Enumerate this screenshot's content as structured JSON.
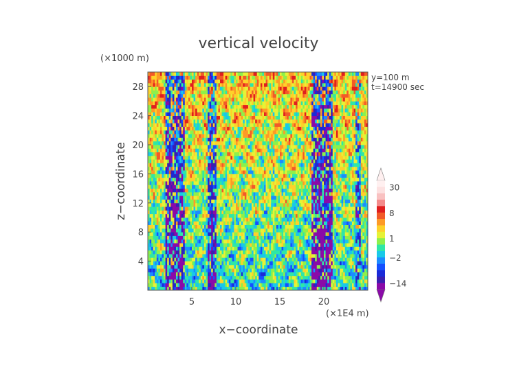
{
  "chart_data": {
    "type": "heatmap",
    "title": "vertical velocity",
    "xlabel": "x−coordinate",
    "ylabel": "z−coordinate",
    "x_unit": "(×1E4 m)",
    "y_unit": "(×1000 m)",
    "xlim": [
      0,
      25
    ],
    "ylim": [
      0,
      30
    ],
    "x_ticks": [
      5,
      10,
      15,
      20
    ],
    "y_ticks": [
      4,
      8,
      12,
      16,
      20,
      24,
      28
    ],
    "annotations": [
      "y=100  m",
      "t=14900 sec"
    ],
    "colorbar": {
      "labels": [
        "30",
        "8",
        "1",
        "−2",
        "−14"
      ],
      "label_values": [
        30,
        8,
        1,
        -2,
        -14
      ],
      "levels": [
        -14,
        -10,
        -6,
        -4,
        -2,
        -1,
        0,
        1,
        2,
        4,
        6,
        8,
        12,
        16,
        22,
        30
      ],
      "colors": [
        "#8a0aa8",
        "#3a1fb0",
        "#1a2ad8",
        "#1450ff",
        "#1c8cff",
        "#19c9e8",
        "#2fe7a6",
        "#8ef04a",
        "#e6f236",
        "#fed12a",
        "#fd9a27",
        "#f25a28",
        "#e01e1e",
        "#f48b8b",
        "#f9c1c1",
        "#fde1e1",
        "#fff0f0"
      ],
      "extend": "both"
    },
    "field_shape": [
      60,
      125
    ],
    "field_note": "dense turbulent vertical velocity field; dominant tones: orange/red upper region, cyan/green/yellow middle, yellow-green lower region, blue updraft/downdraft columns near x=2-4, 7, 19-20"
  }
}
